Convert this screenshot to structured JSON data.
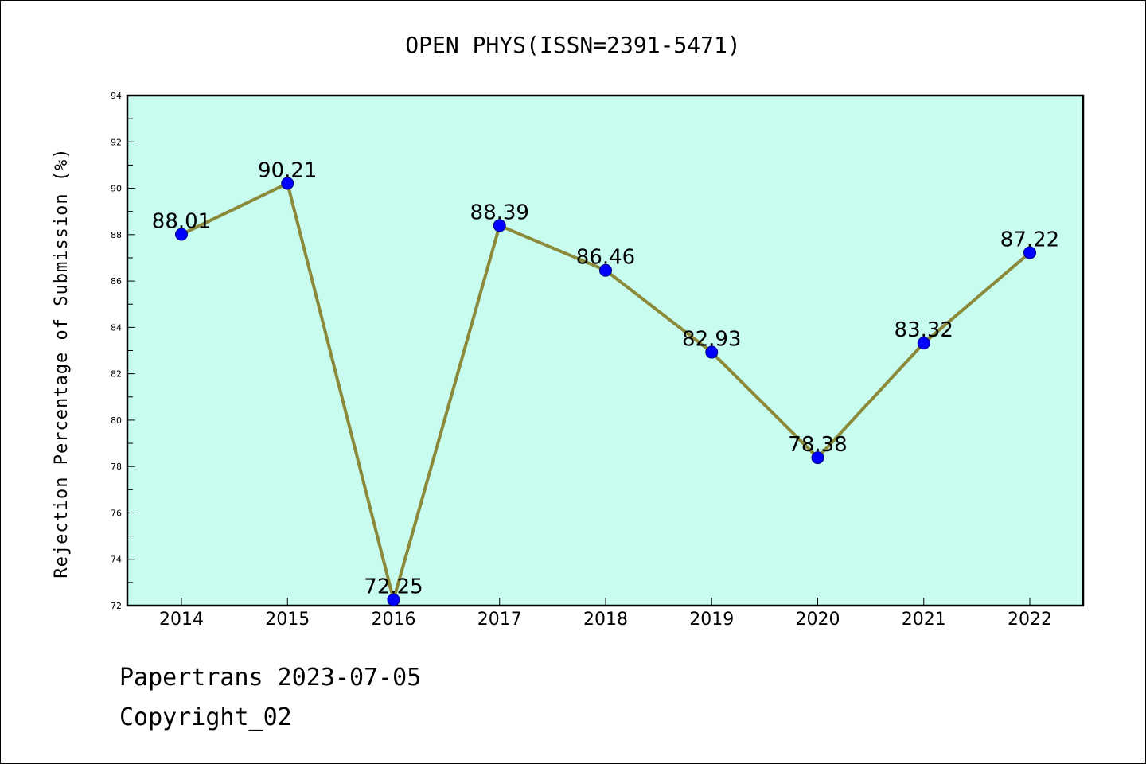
{
  "chart_data": {
    "type": "line",
    "title": "OPEN PHYS(ISSN=2391-5471)",
    "ylabel": "Rejection Percentage of Submission (%)",
    "xlabel": "",
    "x": [
      "2014",
      "2015",
      "2016",
      "2017",
      "2018",
      "2019",
      "2020",
      "2021",
      "2022"
    ],
    "series": [
      {
        "values": [
          88.01,
          90.21,
          72.25,
          88.39,
          86.46,
          82.93,
          78.38,
          83.32,
          87.22
        ],
        "labels": [
          "88.01",
          "90.21",
          "72.25",
          "88.39",
          "86.46",
          "82.93",
          "78.38",
          "83.32",
          "87.22"
        ]
      }
    ],
    "ylim": [
      72,
      94
    ],
    "yticks": [
      72,
      74,
      76,
      78,
      80,
      82,
      84,
      86,
      88,
      90,
      92,
      94
    ],
    "grid": false,
    "colors": {
      "plot_background": "#c8fcee",
      "line": "#8b8a3a",
      "marker": "#0000ff"
    }
  },
  "footer": {
    "line1": "Papertrans 2023-07-05",
    "line2": "Copyright_02"
  }
}
